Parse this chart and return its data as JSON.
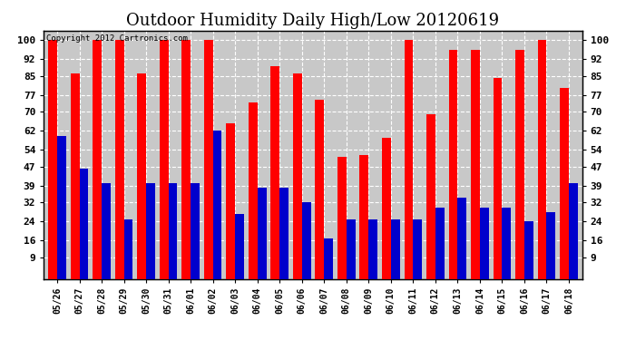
{
  "title": "Outdoor Humidity Daily High/Low 20120619",
  "copyright_text": "Copyright 2012 Cartronics.com",
  "categories": [
    "05/26",
    "05/27",
    "05/28",
    "05/29",
    "05/30",
    "05/31",
    "06/01",
    "06/02",
    "06/03",
    "06/04",
    "06/05",
    "06/06",
    "06/07",
    "06/08",
    "06/09",
    "06/10",
    "06/11",
    "06/12",
    "06/13",
    "06/14",
    "06/15",
    "06/16",
    "06/17",
    "06/18"
  ],
  "highs": [
    100,
    86,
    100,
    100,
    86,
    100,
    100,
    100,
    65,
    74,
    89,
    86,
    75,
    51,
    52,
    59,
    100,
    69,
    96,
    96,
    84,
    96,
    100,
    80
  ],
  "lows": [
    60,
    46,
    40,
    25,
    40,
    40,
    40,
    62,
    27,
    38,
    38,
    32,
    17,
    25,
    25,
    25,
    25,
    30,
    34,
    30,
    30,
    24,
    28,
    40
  ],
  "high_color": "#ff0000",
  "low_color": "#0000cc",
  "bg_color": "#ffffff",
  "plot_bg_color": "#c8c8c8",
  "yticks": [
    9,
    16,
    24,
    32,
    39,
    47,
    54,
    62,
    70,
    77,
    85,
    92,
    100
  ],
  "ymin": 0,
  "ymax": 104,
  "grid_color": "#ffffff",
  "title_fontsize": 13
}
